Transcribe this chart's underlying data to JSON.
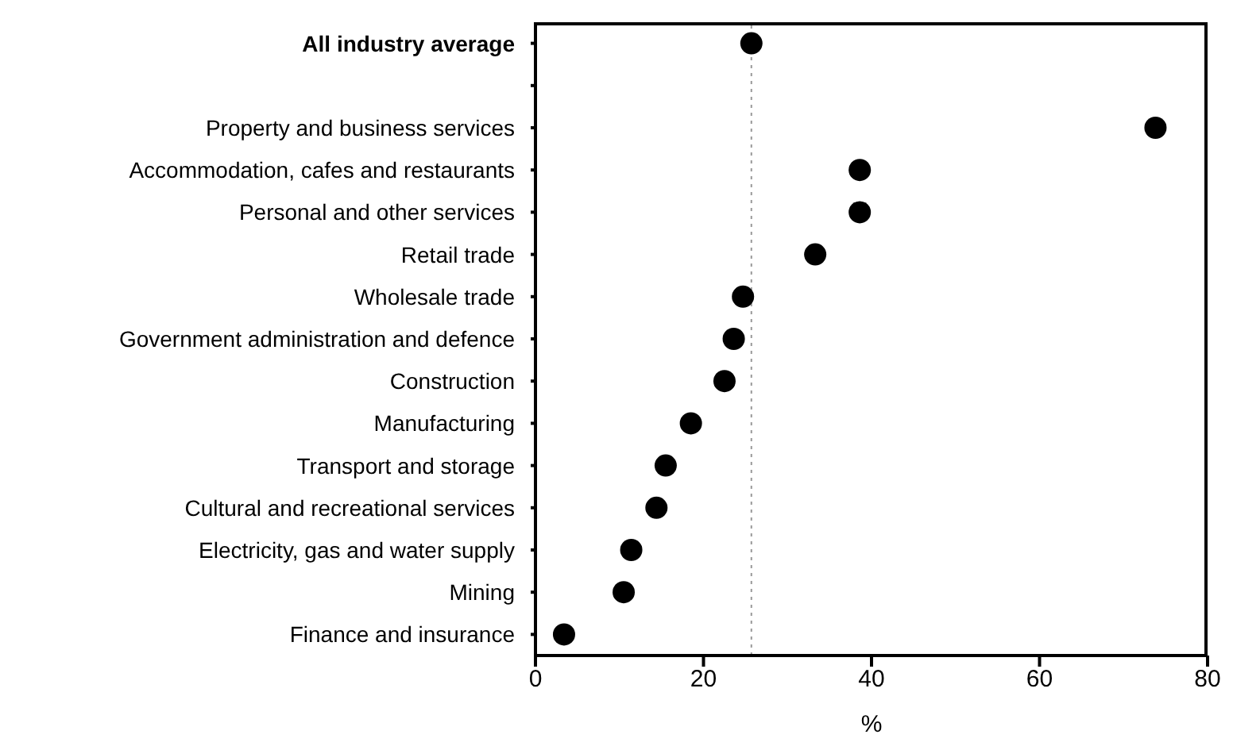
{
  "chart_data": {
    "type": "scatter",
    "orientation": "horizontal",
    "xlabel": "%",
    "categories": [
      "All industry average",
      null,
      "Property and business services",
      "Accommodation, cafes and restaurants",
      "Personal and other services",
      "Retail trade",
      "Wholesale trade",
      "Government administration and defence",
      "Construction",
      "Manufacturing",
      "Transport and storage",
      "Cultural and recreational services",
      "Electricity, gas and water supply",
      "Mining",
      "Finance and insurance"
    ],
    "values": [
      25.7,
      null,
      73.8,
      38.6,
      38.6,
      33.3,
      24.7,
      23.6,
      22.5,
      18.5,
      15.5,
      14.4,
      11.4,
      10.5,
      3.4
    ],
    "color": "#000000",
    "marker": "circle",
    "xlim": [
      0,
      80
    ],
    "xticks": [
      0,
      20,
      40,
      60,
      80
    ],
    "ref_lines": [
      {
        "axis": "x",
        "value": 25.7,
        "line_style": "dotted",
        "color": "#999999"
      }
    ],
    "grid": false
  }
}
